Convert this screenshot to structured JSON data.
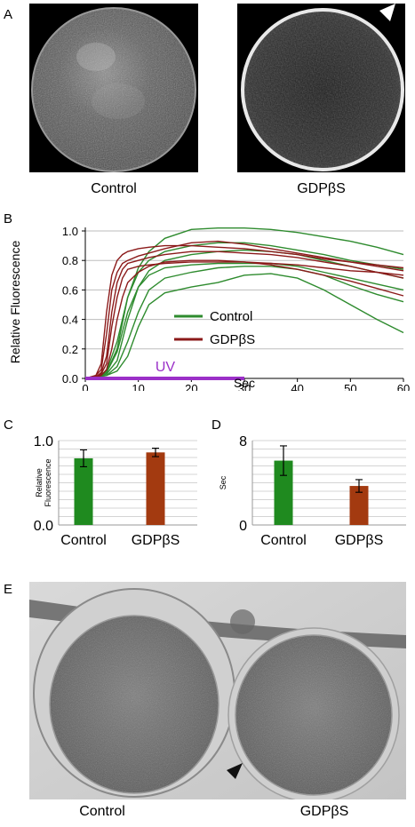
{
  "panels": {
    "a": {
      "letter": "A",
      "left_caption": "Control",
      "right_caption": "GDPβS"
    },
    "b": {
      "letter": "B",
      "uv_label": "UV"
    },
    "c": {
      "letter": "C"
    },
    "d": {
      "letter": "D"
    },
    "e": {
      "letter": "E",
      "left_caption": "Control",
      "right_caption": "GDPβS"
    }
  },
  "chart_data": [
    {
      "type": "line",
      "panel": "B",
      "xlabel": "Sec",
      "ylabel": "Relative Fluorescence",
      "xlim": [
        0,
        60
      ],
      "ylim": [
        0,
        1.0
      ],
      "xticks": [
        "0",
        "10",
        "20",
        "30",
        "40",
        "50",
        "60"
      ],
      "yticks": [
        "0.0",
        "0.2",
        "0.4",
        "0.6",
        "0.8",
        "1.0"
      ],
      "legend": [
        {
          "name": "Control",
          "color": "#2e8b2e"
        },
        {
          "name": "GDPβS",
          "color": "#8b1a1a"
        }
      ],
      "uv_interval": [
        0,
        30
      ],
      "series": [
        {
          "group": "Control",
          "color": "#2e8b2e",
          "x": [
            0,
            2,
            4,
            6,
            8,
            10,
            12,
            15,
            20,
            25,
            30,
            35,
            40,
            45,
            50,
            55,
            60
          ],
          "y": [
            0,
            0.01,
            0.04,
            0.2,
            0.55,
            0.75,
            0.86,
            0.95,
            1.01,
            1.02,
            1.02,
            1.01,
            0.99,
            0.96,
            0.93,
            0.89,
            0.84
          ]
        },
        {
          "group": "Control",
          "color": "#2e8b2e",
          "x": [
            0,
            2,
            4,
            6,
            8,
            10,
            12,
            15,
            20,
            25,
            30,
            35,
            40,
            45,
            50,
            55,
            60
          ],
          "y": [
            0,
            0.01,
            0.05,
            0.25,
            0.55,
            0.72,
            0.8,
            0.86,
            0.9,
            0.92,
            0.92,
            0.9,
            0.87,
            0.84,
            0.8,
            0.77,
            0.74
          ]
        },
        {
          "group": "Control",
          "color": "#2e8b2e",
          "x": [
            0,
            2,
            4,
            6,
            8,
            10,
            12,
            15,
            20,
            25,
            30,
            35,
            40,
            45,
            50,
            55,
            60
          ],
          "y": [
            0,
            0.01,
            0.03,
            0.12,
            0.4,
            0.62,
            0.73,
            0.8,
            0.84,
            0.86,
            0.87,
            0.86,
            0.84,
            0.8,
            0.76,
            0.72,
            0.68
          ]
        },
        {
          "group": "Control",
          "color": "#2e8b2e",
          "x": [
            0,
            2,
            4,
            6,
            8,
            10,
            12,
            15,
            20,
            25,
            30,
            35,
            40,
            45,
            50,
            55,
            60
          ],
          "y": [
            0,
            0.01,
            0.04,
            0.18,
            0.45,
            0.62,
            0.7,
            0.75,
            0.77,
            0.78,
            0.78,
            0.78,
            0.76,
            0.72,
            0.68,
            0.64,
            0.6
          ]
        },
        {
          "group": "Control",
          "color": "#2e8b2e",
          "x": [
            0,
            2,
            4,
            6,
            8,
            10,
            12,
            15,
            20,
            25,
            30,
            35,
            40,
            45,
            50,
            55,
            60
          ],
          "y": [
            0,
            0.01,
            0.02,
            0.08,
            0.25,
            0.45,
            0.6,
            0.68,
            0.72,
            0.75,
            0.76,
            0.76,
            0.74,
            0.7,
            0.63,
            0.57,
            0.52
          ]
        },
        {
          "group": "Control",
          "color": "#2e8b2e",
          "x": [
            0,
            2,
            4,
            6,
            8,
            10,
            12,
            15,
            20,
            25,
            30,
            35,
            40,
            45,
            50,
            55,
            60
          ],
          "y": [
            0,
            0.01,
            0.02,
            0.05,
            0.15,
            0.35,
            0.5,
            0.58,
            0.62,
            0.65,
            0.7,
            0.71,
            0.68,
            0.6,
            0.5,
            0.4,
            0.31
          ]
        },
        {
          "group": "GDPβS",
          "color": "#8b1a1a",
          "x": [
            0,
            2,
            3,
            4,
            5,
            6,
            7,
            8,
            10,
            12,
            15,
            20,
            25,
            30,
            35,
            40,
            45,
            50,
            55,
            60
          ],
          "y": [
            0,
            0.02,
            0.1,
            0.45,
            0.7,
            0.8,
            0.84,
            0.86,
            0.88,
            0.89,
            0.9,
            0.9,
            0.89,
            0.88,
            0.86,
            0.84,
            0.81,
            0.79,
            0.77,
            0.75
          ]
        },
        {
          "group": "GDPβS",
          "color": "#8b1a1a",
          "x": [
            0,
            2,
            3,
            4,
            5,
            6,
            7,
            8,
            10,
            12,
            15,
            20,
            25,
            30,
            35,
            40,
            45,
            50,
            55,
            60
          ],
          "y": [
            0,
            0.02,
            0.06,
            0.3,
            0.6,
            0.72,
            0.78,
            0.8,
            0.83,
            0.85,
            0.88,
            0.92,
            0.93,
            0.91,
            0.88,
            0.85,
            0.82,
            0.79,
            0.76,
            0.73
          ]
        },
        {
          "group": "GDPβS",
          "color": "#8b1a1a",
          "x": [
            0,
            2,
            3,
            4,
            5,
            6,
            7,
            8,
            10,
            12,
            15,
            20,
            25,
            30,
            35,
            40,
            45,
            50,
            55,
            60
          ],
          "y": [
            0,
            0.01,
            0.04,
            0.15,
            0.45,
            0.65,
            0.74,
            0.78,
            0.8,
            0.82,
            0.84,
            0.86,
            0.86,
            0.85,
            0.84,
            0.82,
            0.79,
            0.76,
            0.72,
            0.68
          ]
        },
        {
          "group": "GDPβS",
          "color": "#8b1a1a",
          "x": [
            0,
            2,
            3,
            4,
            5,
            6,
            7,
            8,
            10,
            12,
            15,
            20,
            25,
            30,
            35,
            40,
            45,
            50,
            55,
            60
          ],
          "y": [
            0,
            0.01,
            0.03,
            0.1,
            0.35,
            0.55,
            0.68,
            0.74,
            0.76,
            0.77,
            0.78,
            0.79,
            0.79,
            0.79,
            0.78,
            0.77,
            0.75,
            0.73,
            0.72,
            0.7
          ]
        },
        {
          "group": "GDPβS",
          "color": "#8b1a1a",
          "x": [
            0,
            2,
            3,
            4,
            5,
            6,
            7,
            8,
            10,
            12,
            15,
            20,
            25,
            30,
            35,
            40,
            45,
            50,
            55,
            60
          ],
          "y": [
            0,
            0.01,
            0.02,
            0.06,
            0.2,
            0.4,
            0.55,
            0.65,
            0.72,
            0.76,
            0.79,
            0.8,
            0.8,
            0.79,
            0.77,
            0.74,
            0.7,
            0.66,
            0.61,
            0.56
          ]
        }
      ]
    },
    {
      "type": "bar",
      "panel": "C",
      "ylabel": "Relative\nFluorescence",
      "ylim": [
        0,
        1.0
      ],
      "yticks": [
        "0.0",
        "1.0"
      ],
      "categories": [
        "Control",
        "GDPβS"
      ],
      "values": [
        0.79,
        0.86
      ],
      "errors": [
        0.1,
        0.05
      ],
      "colors": [
        "#1f8a1f",
        "#a33a10"
      ]
    },
    {
      "type": "bar",
      "panel": "D",
      "ylabel": "Sec",
      "ylim": [
        0,
        8
      ],
      "yticks": [
        "0",
        "8"
      ],
      "categories": [
        "Control",
        "GDPβS"
      ],
      "values": [
        6.1,
        3.7
      ],
      "errors": [
        1.4,
        0.6
      ],
      "colors": [
        "#1f8a1f",
        "#a33a10"
      ]
    }
  ]
}
